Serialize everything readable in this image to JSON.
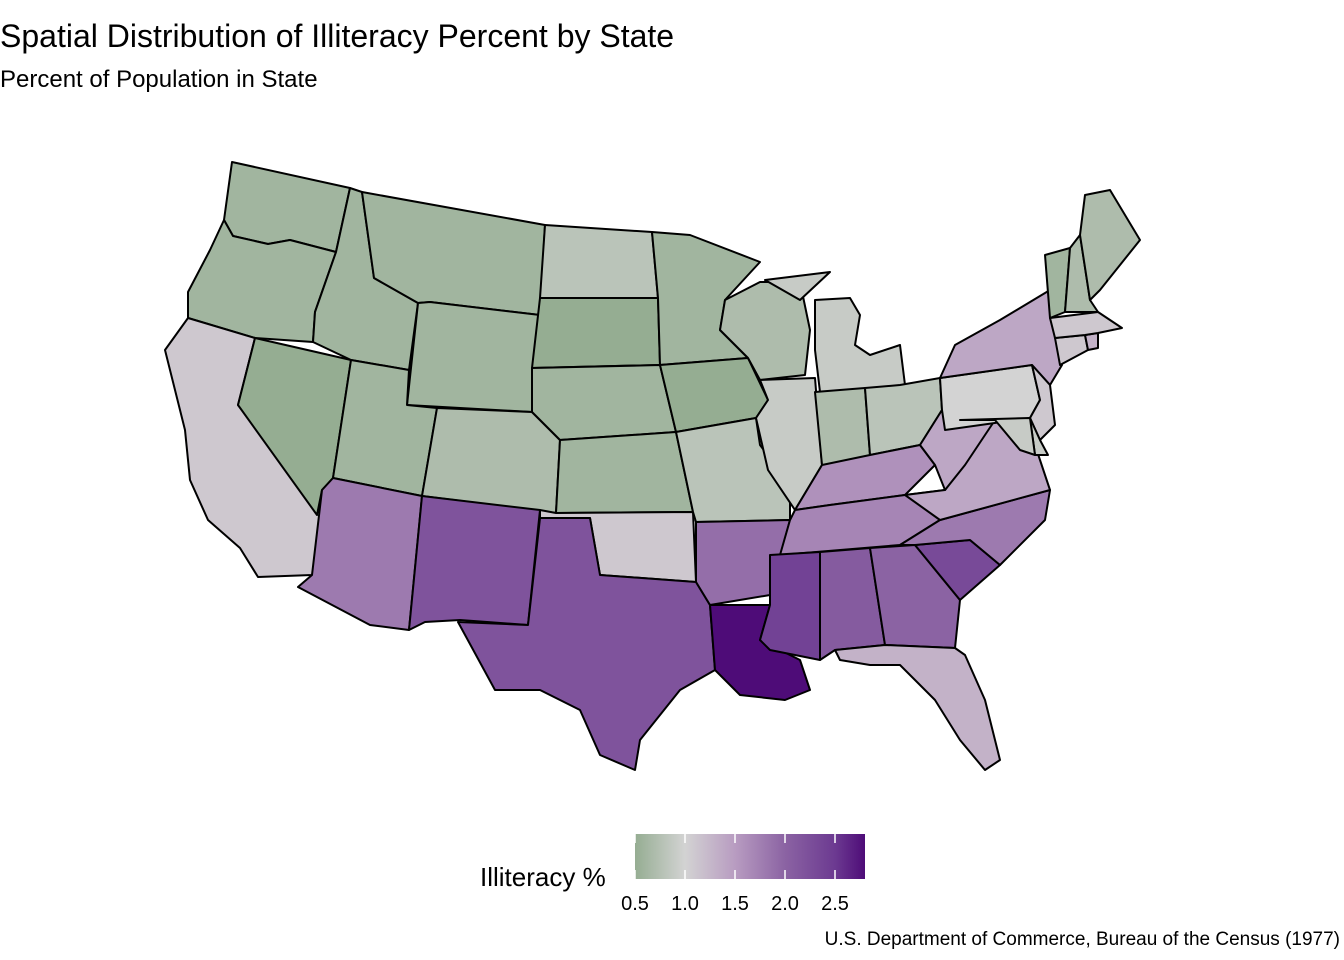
{
  "title": "Spatial Distribution of Illiteracy Percent by State",
  "subtitle": "Percent of Population in State",
  "caption": "U.S. Department of Commerce, Bureau of the Census (1977)",
  "legend": {
    "title": "Illiteracy %",
    "min": 0.5,
    "max": 2.8,
    "ticks": [
      "0.5",
      "1.0",
      "1.5",
      "2.0",
      "2.5"
    ],
    "tick_values": [
      0.5,
      1.0,
      1.5,
      2.0,
      2.5
    ],
    "color_stops": [
      {
        "value": 0.5,
        "color": "#95ad92"
      },
      {
        "value": 1.0,
        "color": "#d3d3d3"
      },
      {
        "value": 1.5,
        "color": "#b89cc1"
      },
      {
        "value": 2.0,
        "color": "#8b63a3"
      },
      {
        "value": 2.5,
        "color": "#6c3a91"
      },
      {
        "value": 2.8,
        "color": "#4e0c78"
      }
    ]
  },
  "illiteracy": {
    "WA": 0.6,
    "OR": 0.6,
    "CA": 1.1,
    "NV": 0.5,
    "ID": 0.6,
    "MT": 0.6,
    "WY": 0.6,
    "UT": 0.6,
    "AZ": 1.8,
    "CO": 0.7,
    "NM": 2.2,
    "ND": 0.8,
    "SD": 0.5,
    "NE": 0.6,
    "KS": 0.6,
    "OK": 1.1,
    "TX": 2.2,
    "MN": 0.6,
    "IA": 0.5,
    "MO": 0.8,
    "AR": 1.9,
    "LA": 2.8,
    "WI": 0.7,
    "IL": 0.9,
    "MI": 0.9,
    "IN": 0.7,
    "OH": 0.8,
    "KY": 1.6,
    "TN": 1.7,
    "MS": 2.4,
    "AL": 2.1,
    "GA": 2.0,
    "FL": 1.3,
    "SC": 2.3,
    "NC": 1.8,
    "VA": 1.4,
    "WV": 1.4,
    "PA": 1.0,
    "NY": 1.4,
    "NJ": 1.1,
    "DE": 0.9,
    "MD": 0.9,
    "CT": 1.1,
    "RI": 1.3,
    "MA": 1.1,
    "VT": 0.6,
    "NH": 0.7,
    "ME": 0.7
  }
}
